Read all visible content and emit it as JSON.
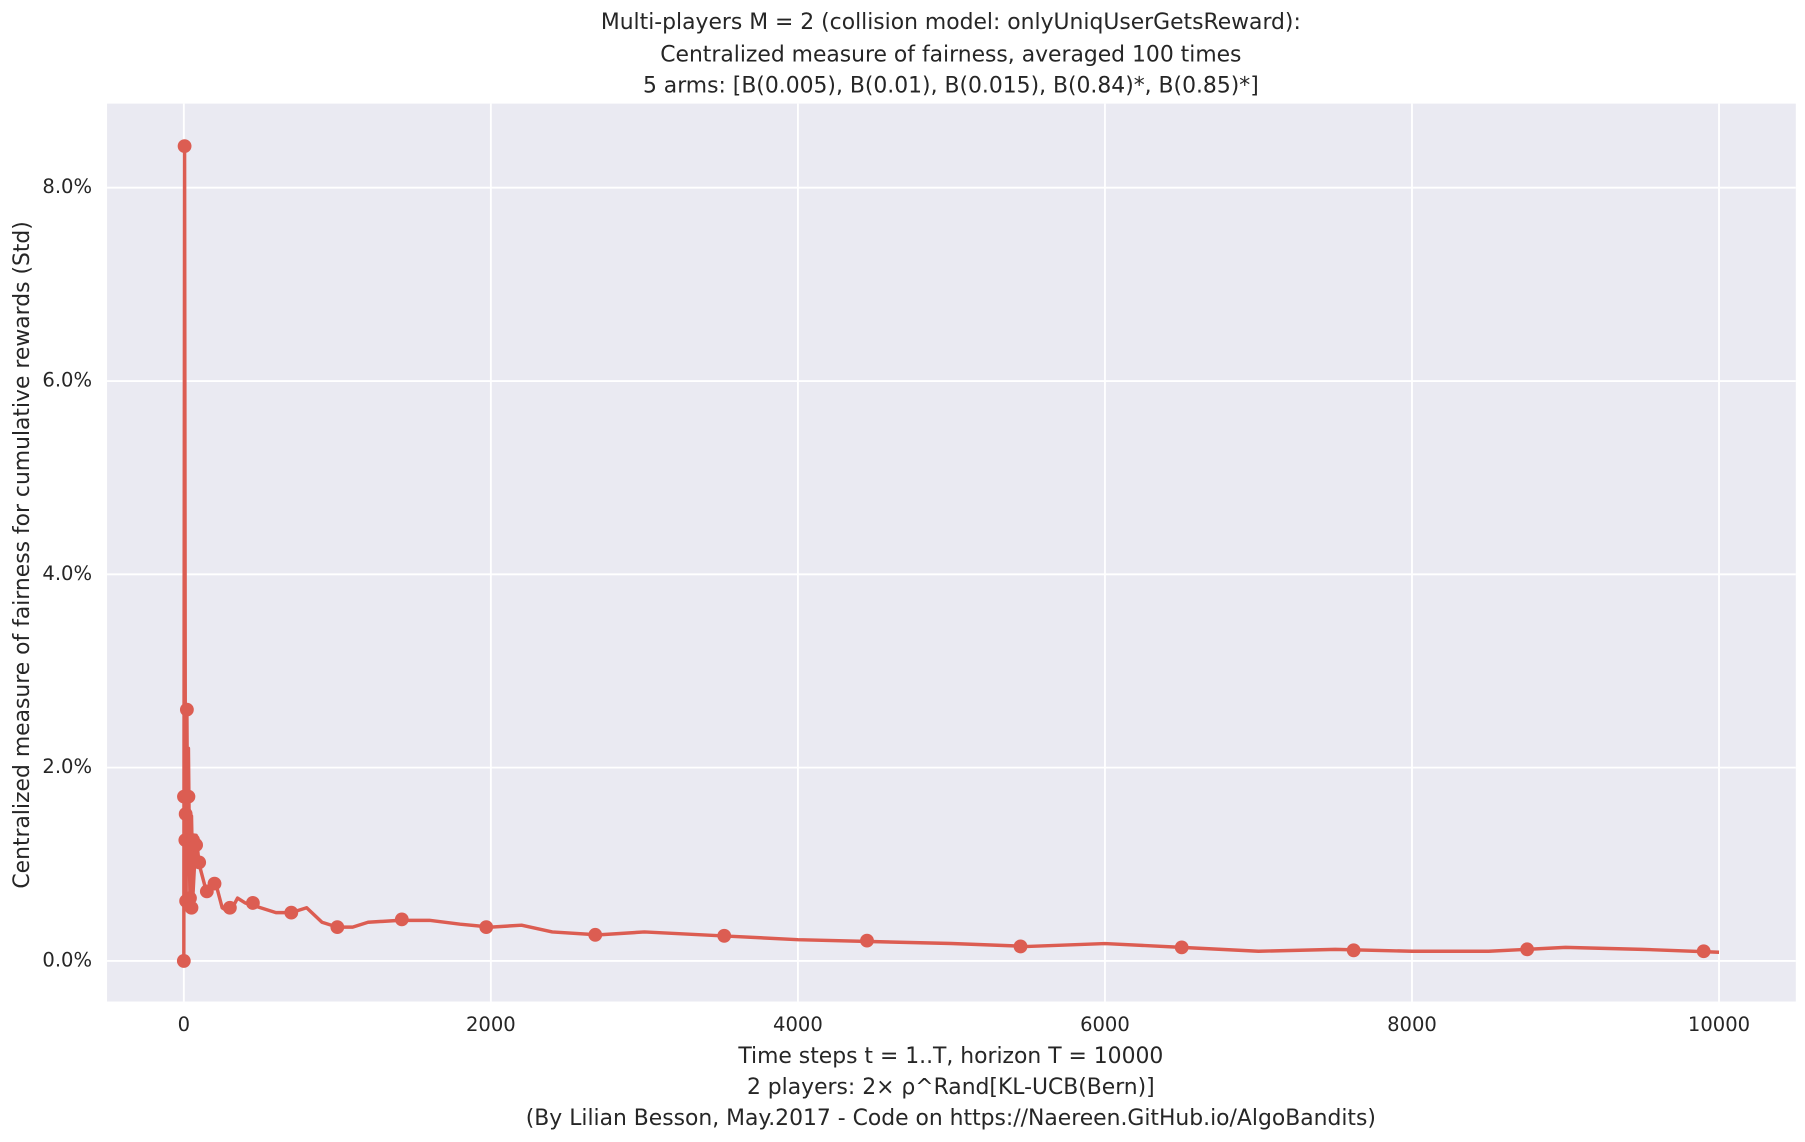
{
  "chart_data": {
    "type": "line",
    "title": [
      "Multi-players M = 2 (collision model: onlyUniqUserGetsReward):",
      "Centralized measure of fairness, averaged 100 times",
      "5 arms: [B(0.005), B(0.01), B(0.015), B(0.84)*, B(0.85)*]"
    ],
    "xlabel": [
      "Time steps t = 1..T, horizon T = 10000",
      "2 players: 2× ρ^Rand[KL-UCB(Bern)]",
      "(By Lilian Besson, May.2017 - Code on https://Naereen.GitHub.io/AlgoBandits)"
    ],
    "ylabel": "Centralized measure of fairness for cumulative rewards (Std)",
    "xlim": [
      -500,
      10500
    ],
    "ylim": [
      -0.42,
      8.87
    ],
    "xticks": [
      0,
      2000,
      4000,
      6000,
      8000,
      10000
    ],
    "yticks": [
      {
        "value": 0,
        "label": "0.0%"
      },
      {
        "value": 2,
        "label": "2.0%"
      },
      {
        "value": 4,
        "label": "4.0%"
      },
      {
        "value": 6,
        "label": "6.0%"
      },
      {
        "value": 8,
        "label": "8.0%"
      }
    ],
    "grid": true,
    "background": "#eaeaf2",
    "series": [
      {
        "style": "line",
        "color": "#dc5d52",
        "x": [
          0,
          5,
          10,
          15,
          20,
          25,
          30,
          40,
          50,
          60,
          80,
          100,
          150,
          200,
          250,
          300,
          350,
          400,
          500,
          600,
          700,
          800,
          900,
          1000,
          1100,
          1200,
          1400,
          1600,
          1800,
          2000,
          2200,
          2400,
          2700,
          3000,
          3500,
          4000,
          4500,
          5000,
          5500,
          6000,
          6500,
          7000,
          7500,
          8000,
          8500,
          9000,
          9500,
          10000
        ],
        "values": [
          0,
          8.43,
          1.7,
          0.6,
          2.6,
          1.2,
          2.2,
          0.6,
          1.5,
          0.7,
          1.3,
          1.0,
          0.7,
          0.85,
          0.55,
          0.5,
          0.65,
          0.6,
          0.55,
          0.5,
          0.5,
          0.55,
          0.4,
          0.35,
          0.35,
          0.4,
          0.42,
          0.42,
          0.38,
          0.35,
          0.37,
          0.3,
          0.27,
          0.3,
          0.26,
          0.22,
          0.2,
          0.18,
          0.15,
          0.18,
          0.14,
          0.1,
          0.12,
          0.1,
          0.1,
          0.14,
          0.12,
          0.09
        ]
      },
      {
        "style": "markers",
        "color": "#dc5d52",
        "x": [
          0,
          1,
          5,
          10,
          12,
          15,
          20,
          30,
          40,
          50,
          60,
          80,
          100,
          150,
          200,
          300,
          450,
          700,
          1000,
          1420,
          1970,
          2680,
          3520,
          4450,
          5450,
          6500,
          7620,
          8750,
          9900
        ],
        "values": [
          0,
          1.7,
          8.43,
          1.25,
          1.52,
          0.62,
          2.6,
          1.7,
          0.65,
          0.55,
          1.25,
          1.2,
          1.02,
          0.72,
          0.8,
          0.55,
          0.6,
          0.5,
          0.35,
          0.43,
          0.35,
          0.27,
          0.26,
          0.21,
          0.15,
          0.14,
          0.11,
          0.12,
          0.1
        ]
      }
    ]
  }
}
